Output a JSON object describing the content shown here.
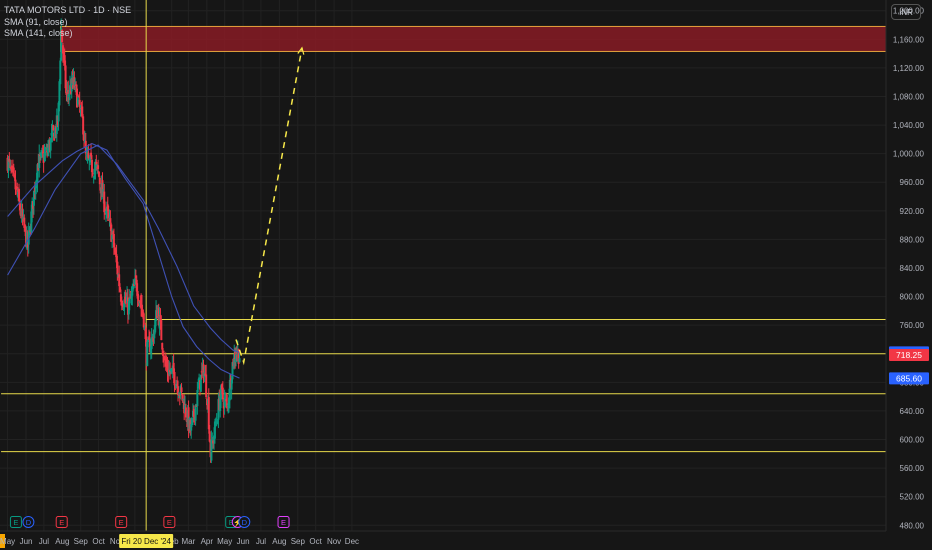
{
  "header": {
    "title": "TATA MOTORS LTD · 1D · NSE",
    "sma1": "SMA (91, close)",
    "sma2": "SMA (141, close)",
    "currency": "INR"
  },
  "colors": {
    "background": "#161616",
    "candle_up": "#089981",
    "candle_down": "#f23645",
    "sma91": "#3f51b5",
    "sma141": "#3f51b5",
    "levels": "#e6d94a",
    "zone_fill": "#8e1c26",
    "zone_border": "#e6a23c",
    "projection": "#f7e84a",
    "crosshair": "#e6d94a"
  },
  "chart_data": {
    "type": "candlestick",
    "y_axis": {
      "ticks": [
        480,
        520,
        560,
        600,
        640,
        680,
        720,
        760,
        800,
        840,
        880,
        920,
        960,
        1000,
        1040,
        1080,
        1120,
        1160,
        1200
      ],
      "tick_labels": [
        "480.00",
        "520.00",
        "560.00",
        "600.00",
        "640.00",
        "680.00",
        "720.00",
        "760.00",
        "800.00",
        "840.00",
        "880.00",
        "920.00",
        "960.00",
        "1,000.00",
        "1,040.00",
        "1,080.00",
        "1,120.00",
        "1,160.00",
        "1,200.00"
      ],
      "range": [
        472,
        1215
      ]
    },
    "x_axis": {
      "labels": [
        "May",
        "Jun",
        "Jul",
        "Aug",
        "Sep",
        "Oct",
        "Nov",
        "Dec",
        "Feb",
        "Mar",
        "Apr",
        "May",
        "Jun",
        "Jul",
        "Aug",
        "Sep",
        "Oct",
        "Nov",
        "Dec"
      ],
      "crosshair_label": "Fri 20 Dec '24"
    },
    "price_badges": [
      {
        "text": "721.96",
        "value": 721.96,
        "color": "#2962ff"
      },
      {
        "text": "718.25",
        "value": 718.25,
        "color": "#f23645"
      },
      {
        "text": "685.60",
        "value": 685.6,
        "color": "#2962ff"
      }
    ],
    "anchors": [
      [
        "2024-05-01",
        990
      ],
      [
        "2024-05-15",
        950
      ],
      [
        "2024-06-04",
        870
      ],
      [
        "2024-06-20",
        985
      ],
      [
        "2024-07-05",
        1000
      ],
      [
        "2024-07-25",
        1045
      ],
      [
        "2024-07-30",
        1175
      ],
      [
        "2024-08-08",
        1080
      ],
      [
        "2024-08-20",
        1100
      ],
      [
        "2024-09-05",
        1040
      ],
      [
        "2024-09-10",
        990
      ],
      [
        "2024-09-30",
        975
      ],
      [
        "2024-10-08",
        940
      ],
      [
        "2024-10-25",
        880
      ],
      [
        "2024-11-08",
        800
      ],
      [
        "2024-11-20",
        785
      ],
      [
        "2024-12-03",
        820
      ],
      [
        "2024-12-16",
        770
      ],
      [
        "2024-12-20",
        720
      ],
      [
        "2025-01-01",
        745
      ],
      [
        "2025-01-08",
        785
      ],
      [
        "2025-01-22",
        700
      ],
      [
        "2025-02-05",
        690
      ],
      [
        "2025-02-20",
        655
      ],
      [
        "2025-03-05",
        610
      ],
      [
        "2025-03-20",
        680
      ],
      [
        "2025-03-27",
        700
      ],
      [
        "2025-04-03",
        650
      ],
      [
        "2025-04-07",
        580
      ],
      [
        "2025-04-18",
        630
      ],
      [
        "2025-04-24",
        665
      ],
      [
        "2025-05-05",
        645
      ],
      [
        "2025-05-14",
        705
      ],
      [
        "2025-05-20",
        725
      ],
      [
        "2025-05-26",
        718
      ]
    ],
    "candle_count": 265,
    "sma91": [
      [
        "2024-05-01",
        912
      ],
      [
        "2024-06-15",
        955
      ],
      [
        "2024-08-01",
        990
      ],
      [
        "2024-08-25",
        1003
      ],
      [
        "2024-09-20",
        1014
      ],
      [
        "2024-10-15",
        1005
      ],
      [
        "2024-11-15",
        965
      ],
      [
        "2024-12-15",
        930
      ],
      [
        "2025-01-10",
        860
      ],
      [
        "2025-02-01",
        800
      ],
      [
        "2025-02-20",
        758
      ],
      [
        "2025-03-15",
        730
      ],
      [
        "2025-04-05",
        712
      ],
      [
        "2025-04-25",
        698
      ],
      [
        "2025-05-15",
        690
      ],
      [
        "2025-05-26",
        686
      ]
    ],
    "sma141": [
      [
        "2024-05-01",
        830
      ],
      [
        "2024-06-15",
        895
      ],
      [
        "2024-07-20",
        950
      ],
      [
        "2024-09-01",
        1000
      ],
      [
        "2024-09-30",
        1012
      ],
      [
        "2024-11-01",
        985
      ],
      [
        "2024-12-15",
        935
      ],
      [
        "2025-01-10",
        895
      ],
      [
        "2025-02-10",
        842
      ],
      [
        "2025-03-10",
        787
      ],
      [
        "2025-04-07",
        756
      ],
      [
        "2025-04-25",
        740
      ],
      [
        "2025-05-15",
        725
      ],
      [
        "2025-05-26",
        722
      ]
    ],
    "supply_zone": {
      "from": "2024-07-29",
      "to": "2025-12-31",
      "low": 1143,
      "high": 1178
    },
    "levels": [
      {
        "from": "2024-12-20",
        "to": "2025-12-31",
        "price": 768
      },
      {
        "from": "2024-12-20",
        "to": "2025-12-31",
        "price": 720
      },
      {
        "from": "2024-04-20",
        "to": "2025-12-31",
        "price": 664
      },
      {
        "from": "2024-04-20",
        "to": "2025-12-31",
        "price": 583
      }
    ],
    "projection": [
      [
        "2025-05-20",
        740
      ],
      [
        "2025-06-02",
        708
      ],
      [
        "2025-09-08",
        1148
      ]
    ],
    "crosshair_date": "2024-12-20",
    "events": [
      {
        "date": "2024-05-15",
        "label": "E",
        "color": "#089981"
      },
      {
        "date": "2024-06-05",
        "label": "D",
        "color": "#2962ff"
      },
      {
        "date": "2024-07-31",
        "label": "E",
        "color": "#f23645"
      },
      {
        "date": "2024-11-08",
        "label": "E",
        "color": "#f23645"
      },
      {
        "date": "2025-01-28",
        "label": "E",
        "color": "#f23645"
      },
      {
        "date": "2025-05-12",
        "label": "E",
        "color": "#089981"
      },
      {
        "date": "2025-05-23",
        "label": "⚡",
        "color": "#e040fb"
      },
      {
        "date": "2025-06-03",
        "label": "D",
        "color": "#2962ff"
      },
      {
        "date": "2025-08-08",
        "label": "E",
        "color": "#e040fb"
      }
    ]
  }
}
